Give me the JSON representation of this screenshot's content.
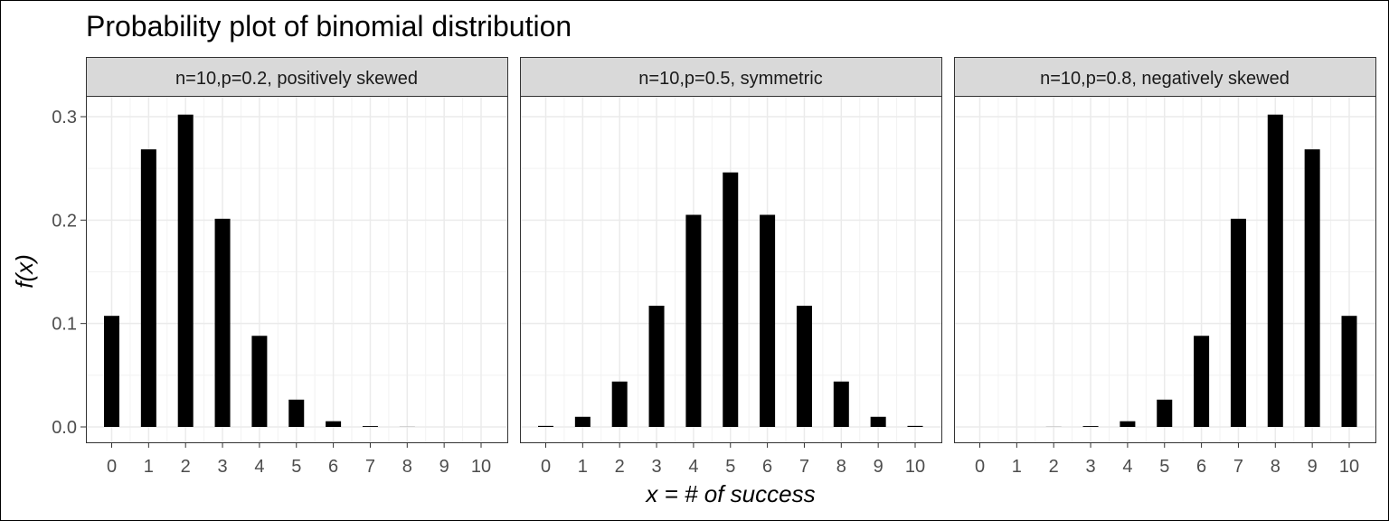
{
  "chart_data": {
    "type": "bar",
    "title": "Probability plot of binomial distribution",
    "xlabel": "x = # of success",
    "ylabel": "f(x)",
    "x": [
      0,
      1,
      2,
      3,
      4,
      5,
      6,
      7,
      8,
      9,
      10
    ],
    "x_ticks": [
      "0",
      "1",
      "2",
      "3",
      "4",
      "5",
      "6",
      "7",
      "8",
      "9",
      "10"
    ],
    "ylim": [
      0,
      0.33
    ],
    "y_ticks": [
      {
        "value": 0.0,
        "label": "0.0"
      },
      {
        "value": 0.1,
        "label": "0.1"
      },
      {
        "value": 0.2,
        "label": "0.2"
      },
      {
        "value": 0.3,
        "label": "0.3"
      }
    ],
    "grid": true,
    "bar_color": "#000000",
    "panels": [
      {
        "label": "n=10,p=0.2, positively skewed",
        "values": [
          0.1074,
          0.2684,
          0.302,
          0.2013,
          0.0881,
          0.0264,
          0.0055,
          0.0008,
          0.0001,
          0.0,
          0.0
        ]
      },
      {
        "label": "n=10,p=0.5, symmetric",
        "values": [
          0.001,
          0.0098,
          0.0439,
          0.1172,
          0.2051,
          0.2461,
          0.2051,
          0.1172,
          0.0439,
          0.0098,
          0.001
        ]
      },
      {
        "label": "n=10,p=0.8, negatively skewed",
        "values": [
          0.0,
          0.0,
          0.0001,
          0.0008,
          0.0055,
          0.0264,
          0.0881,
          0.2013,
          0.302,
          0.2684,
          0.1074
        ]
      }
    ]
  }
}
